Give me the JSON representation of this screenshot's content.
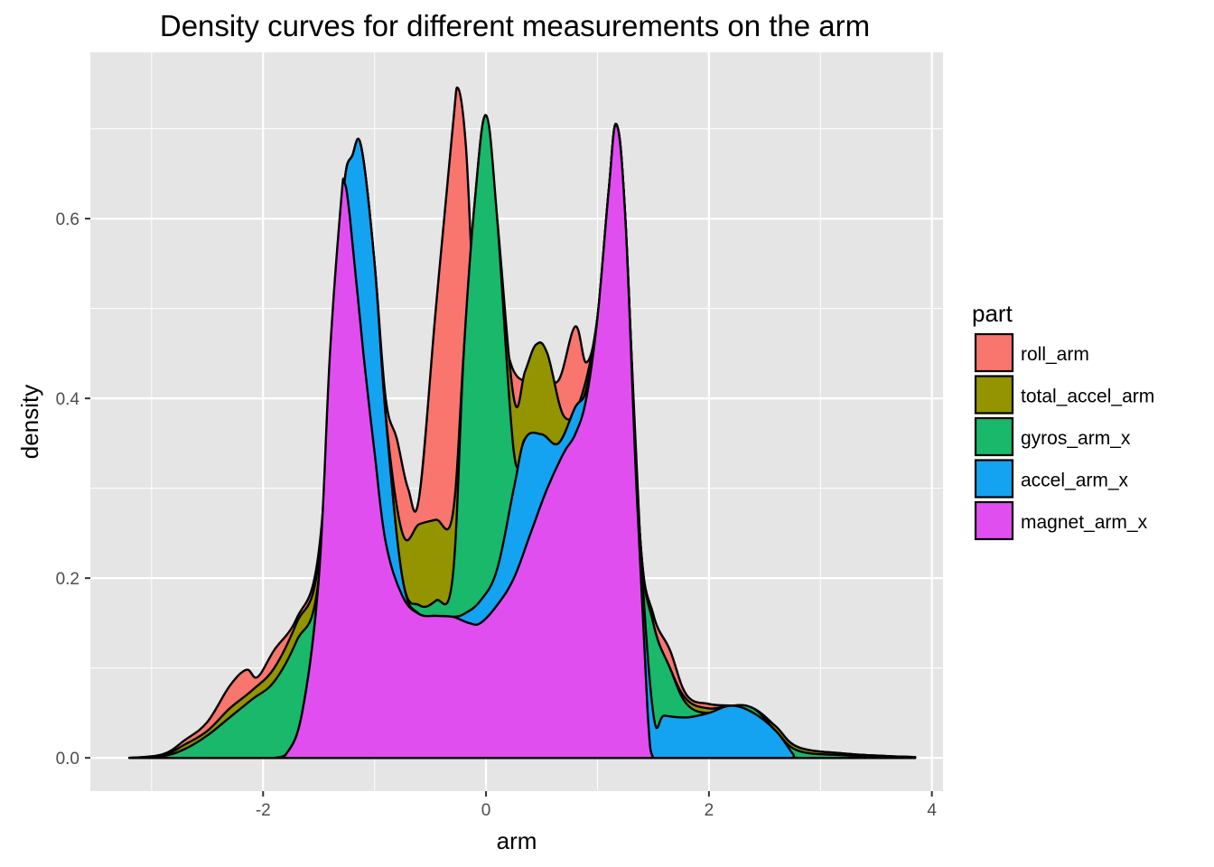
{
  "chart_data": {
    "type": "area",
    "title": "Density curves for different measurements on the arm",
    "xlabel": "arm",
    "ylabel": "density",
    "xlim": [
      -3.55,
      4.1
    ],
    "ylim": [
      -0.037,
      0.785
    ],
    "x_ticks": [
      -2,
      0,
      2,
      4
    ],
    "x_tick_labels": [
      "-2",
      "0",
      "2",
      "4"
    ],
    "y_ticks": [
      0.0,
      0.2,
      0.4,
      0.6
    ],
    "y_tick_labels": [
      "0.0",
      "0.2",
      "0.4",
      "0.6"
    ],
    "grid": true,
    "stacked": true,
    "legend": {
      "title": "part",
      "position": "right"
    },
    "colors": {
      "panel": "#e5e5e5",
      "grid": "#ffffff",
      "outline": "#000000"
    },
    "series": [
      {
        "name": "roll_arm",
        "color": "#f8766d",
        "points": [
          [
            -3.2,
            0
          ],
          [
            -2.9,
            0.004
          ],
          [
            -2.7,
            0.02
          ],
          [
            -2.5,
            0.04
          ],
          [
            -2.3,
            0.08
          ],
          [
            -2.15,
            0.098
          ],
          [
            -2.05,
            0.09
          ],
          [
            -1.9,
            0.12
          ],
          [
            -1.7,
            0.155
          ],
          [
            -1.5,
            0.23
          ],
          [
            -1.35,
            0.5
          ],
          [
            -1.27,
            0.64
          ],
          [
            -1.2,
            0.67
          ],
          [
            -1.12,
            0.68
          ],
          [
            -1.0,
            0.55
          ],
          [
            -0.9,
            0.4
          ],
          [
            -0.8,
            0.355
          ],
          [
            -0.7,
            0.3
          ],
          [
            -0.6,
            0.29
          ],
          [
            -0.45,
            0.5
          ],
          [
            -0.3,
            0.7
          ],
          [
            -0.25,
            0.745
          ],
          [
            -0.18,
            0.68
          ],
          [
            -0.1,
            0.5
          ],
          [
            0.0,
            0.48
          ],
          [
            0.1,
            0.49
          ],
          [
            0.25,
            0.43
          ],
          [
            0.4,
            0.42
          ],
          [
            0.5,
            0.43
          ],
          [
            0.65,
            0.42
          ],
          [
            0.8,
            0.48
          ],
          [
            0.9,
            0.44
          ],
          [
            1.0,
            0.49
          ],
          [
            1.1,
            0.63
          ],
          [
            1.17,
            0.705
          ],
          [
            1.25,
            0.6
          ],
          [
            1.38,
            0.25
          ],
          [
            1.5,
            0.16
          ],
          [
            1.65,
            0.12
          ],
          [
            1.8,
            0.07
          ],
          [
            2.0,
            0.06
          ],
          [
            2.2,
            0.058
          ],
          [
            2.4,
            0.055
          ],
          [
            2.6,
            0.035
          ],
          [
            2.8,
            0.012
          ],
          [
            3.2,
            0.005
          ],
          [
            3.6,
            0.002
          ],
          [
            3.85,
            0.001
          ]
        ]
      },
      {
        "name": "total_accel_arm",
        "color": "#949400",
        "points": [
          [
            -3.2,
            0
          ],
          [
            -2.9,
            0.003
          ],
          [
            -2.7,
            0.015
          ],
          [
            -2.5,
            0.03
          ],
          [
            -2.3,
            0.055
          ],
          [
            -2.1,
            0.075
          ],
          [
            -1.9,
            0.1
          ],
          [
            -1.7,
            0.15
          ],
          [
            -1.5,
            0.22
          ],
          [
            -1.35,
            0.5
          ],
          [
            -1.27,
            0.64
          ],
          [
            -1.2,
            0.67
          ],
          [
            -1.12,
            0.68
          ],
          [
            -1.0,
            0.55
          ],
          [
            -0.9,
            0.38
          ],
          [
            -0.75,
            0.25
          ],
          [
            -0.6,
            0.26
          ],
          [
            -0.45,
            0.265
          ],
          [
            -0.3,
            0.27
          ],
          [
            -0.2,
            0.45
          ],
          [
            -0.1,
            0.62
          ],
          [
            0.0,
            0.715
          ],
          [
            0.1,
            0.6
          ],
          [
            0.25,
            0.4
          ],
          [
            0.35,
            0.43
          ],
          [
            0.45,
            0.46
          ],
          [
            0.55,
            0.45
          ],
          [
            0.7,
            0.38
          ],
          [
            0.85,
            0.4
          ],
          [
            1.0,
            0.49
          ],
          [
            1.1,
            0.63
          ],
          [
            1.17,
            0.705
          ],
          [
            1.25,
            0.6
          ],
          [
            1.38,
            0.25
          ],
          [
            1.5,
            0.15
          ],
          [
            1.65,
            0.1
          ],
          [
            1.8,
            0.065
          ],
          [
            2.0,
            0.055
          ],
          [
            2.2,
            0.058
          ],
          [
            2.4,
            0.055
          ],
          [
            2.6,
            0.035
          ],
          [
            2.8,
            0.012
          ],
          [
            3.2,
            0.005
          ],
          [
            3.6,
            0.002
          ],
          [
            3.85,
            0.001
          ]
        ]
      },
      {
        "name": "gyros_arm_x",
        "color": "#19b86a",
        "points": [
          [
            -3.2,
            0
          ],
          [
            -2.9,
            0.002
          ],
          [
            -2.7,
            0.01
          ],
          [
            -2.5,
            0.025
          ],
          [
            -2.3,
            0.045
          ],
          [
            -2.1,
            0.065
          ],
          [
            -1.9,
            0.085
          ],
          [
            -1.7,
            0.13
          ],
          [
            -1.5,
            0.2
          ],
          [
            -1.35,
            0.5
          ],
          [
            -1.27,
            0.64
          ],
          [
            -1.2,
            0.67
          ],
          [
            -1.12,
            0.68
          ],
          [
            -1.0,
            0.55
          ],
          [
            -0.9,
            0.38
          ],
          [
            -0.75,
            0.2
          ],
          [
            -0.6,
            0.17
          ],
          [
            -0.45,
            0.175
          ],
          [
            -0.3,
            0.2
          ],
          [
            -0.2,
            0.45
          ],
          [
            -0.1,
            0.62
          ],
          [
            0.0,
            0.715
          ],
          [
            0.1,
            0.6
          ],
          [
            0.25,
            0.34
          ],
          [
            0.35,
            0.355
          ],
          [
            0.5,
            0.36
          ],
          [
            0.65,
            0.35
          ],
          [
            0.8,
            0.39
          ],
          [
            0.9,
            0.41
          ],
          [
            1.0,
            0.49
          ],
          [
            1.1,
            0.63
          ],
          [
            1.17,
            0.705
          ],
          [
            1.25,
            0.6
          ],
          [
            1.38,
            0.25
          ],
          [
            1.5,
            0.15
          ],
          [
            1.65,
            0.1
          ],
          [
            1.8,
            0.06
          ],
          [
            2.0,
            0.05
          ],
          [
            2.2,
            0.058
          ],
          [
            2.4,
            0.055
          ],
          [
            2.6,
            0.03
          ],
          [
            2.8,
            0.008
          ],
          [
            3.2,
            0.003
          ],
          [
            3.6,
            0.001
          ],
          [
            3.85,
            0.0
          ]
        ]
      },
      {
        "name": "accel_arm_x",
        "color": "#14a3f0",
        "points": [
          [
            -3.2,
            0
          ],
          [
            -2.9,
            0
          ],
          [
            -2.5,
            0
          ],
          [
            -2.1,
            0
          ],
          [
            -1.9,
            0.0
          ],
          [
            -1.8,
            0.003
          ],
          [
            -1.65,
            0.05
          ],
          [
            -1.5,
            0.2
          ],
          [
            -1.35,
            0.5
          ],
          [
            -1.27,
            0.64
          ],
          [
            -1.2,
            0.67
          ],
          [
            -1.12,
            0.68
          ],
          [
            -1.0,
            0.55
          ],
          [
            -0.9,
            0.38
          ],
          [
            -0.75,
            0.2
          ],
          [
            -0.6,
            0.16
          ],
          [
            -0.45,
            0.158
          ],
          [
            -0.3,
            0.157
          ],
          [
            -0.2,
            0.16
          ],
          [
            -0.05,
            0.175
          ],
          [
            0.1,
            0.21
          ],
          [
            0.25,
            0.3
          ],
          [
            0.35,
            0.355
          ],
          [
            0.5,
            0.36
          ],
          [
            0.65,
            0.35
          ],
          [
            0.8,
            0.39
          ],
          [
            0.9,
            0.41
          ],
          [
            1.0,
            0.49
          ],
          [
            1.1,
            0.63
          ],
          [
            1.17,
            0.705
          ],
          [
            1.25,
            0.6
          ],
          [
            1.38,
            0.25
          ],
          [
            1.5,
            0.05
          ],
          [
            1.6,
            0.047
          ],
          [
            1.8,
            0.045
          ],
          [
            2.0,
            0.05
          ],
          [
            2.2,
            0.058
          ],
          [
            2.4,
            0.05
          ],
          [
            2.6,
            0.03
          ],
          [
            2.75,
            0.005
          ],
          [
            2.8,
            0.0
          ],
          [
            3.2,
            0
          ],
          [
            3.85,
            0
          ]
        ]
      },
      {
        "name": "magnet_arm_x",
        "color": "#e14ef0",
        "points": [
          [
            -3.2,
            0
          ],
          [
            -2.5,
            0
          ],
          [
            -2.0,
            0
          ],
          [
            -1.9,
            0.0
          ],
          [
            -1.8,
            0.003
          ],
          [
            -1.65,
            0.05
          ],
          [
            -1.5,
            0.2
          ],
          [
            -1.4,
            0.45
          ],
          [
            -1.3,
            0.62
          ],
          [
            -1.27,
            0.64
          ],
          [
            -1.22,
            0.6
          ],
          [
            -1.1,
            0.45
          ],
          [
            -1.0,
            0.34
          ],
          [
            -0.9,
            0.24
          ],
          [
            -0.75,
            0.18
          ],
          [
            -0.6,
            0.16
          ],
          [
            -0.45,
            0.158
          ],
          [
            -0.3,
            0.157
          ],
          [
            -0.15,
            0.15
          ],
          [
            -0.05,
            0.15
          ],
          [
            0.1,
            0.17
          ],
          [
            0.25,
            0.2
          ],
          [
            0.4,
            0.25
          ],
          [
            0.55,
            0.3
          ],
          [
            0.7,
            0.34
          ],
          [
            0.8,
            0.36
          ],
          [
            0.9,
            0.4
          ],
          [
            1.0,
            0.49
          ],
          [
            1.1,
            0.63
          ],
          [
            1.17,
            0.705
          ],
          [
            1.25,
            0.6
          ],
          [
            1.35,
            0.3
          ],
          [
            1.45,
            0.05
          ],
          [
            1.5,
            0.0
          ],
          [
            1.6,
            0
          ],
          [
            2.0,
            0
          ],
          [
            3.85,
            0
          ]
        ]
      }
    ]
  }
}
